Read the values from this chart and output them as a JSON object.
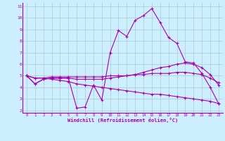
{
  "xlabel": "Windchill (Refroidissement éolien,°C)",
  "bg_color": "#cceeff",
  "line_color": "#aa00aa",
  "grid_color": "#aacccc",
  "xlim": [
    -0.5,
    23.5
  ],
  "ylim": [
    1.8,
    11.3
  ],
  "xticks": [
    0,
    1,
    2,
    3,
    4,
    5,
    6,
    7,
    8,
    9,
    10,
    11,
    12,
    13,
    14,
    15,
    16,
    17,
    18,
    19,
    20,
    21,
    22,
    23
  ],
  "yticks": [
    2,
    3,
    4,
    5,
    6,
    7,
    8,
    9,
    10,
    11
  ],
  "line1": [
    5.0,
    4.3,
    4.7,
    4.8,
    4.8,
    4.8,
    2.2,
    2.3,
    4.2,
    2.9,
    7.0,
    8.9,
    8.4,
    9.8,
    10.2,
    10.8,
    9.6,
    8.3,
    7.8,
    6.2,
    6.1,
    5.2,
    4.0,
    2.6
  ],
  "line2": [
    5.0,
    4.3,
    4.7,
    4.8,
    4.8,
    4.8,
    4.7,
    4.7,
    4.7,
    4.7,
    4.8,
    4.9,
    5.0,
    5.1,
    5.3,
    5.5,
    5.7,
    5.8,
    6.0,
    6.1,
    6.0,
    5.7,
    5.1,
    4.2
  ],
  "line3": [
    5.0,
    4.8,
    4.8,
    4.9,
    4.9,
    4.9,
    4.9,
    4.9,
    4.9,
    4.9,
    5.0,
    5.0,
    5.0,
    5.1,
    5.1,
    5.2,
    5.2,
    5.2,
    5.3,
    5.3,
    5.2,
    5.1,
    4.8,
    4.4
  ],
  "line4": [
    5.0,
    4.8,
    4.8,
    4.7,
    4.6,
    4.5,
    4.3,
    4.2,
    4.1,
    4.0,
    3.9,
    3.8,
    3.7,
    3.6,
    3.5,
    3.4,
    3.4,
    3.3,
    3.2,
    3.1,
    3.0,
    2.9,
    2.8,
    2.6
  ]
}
